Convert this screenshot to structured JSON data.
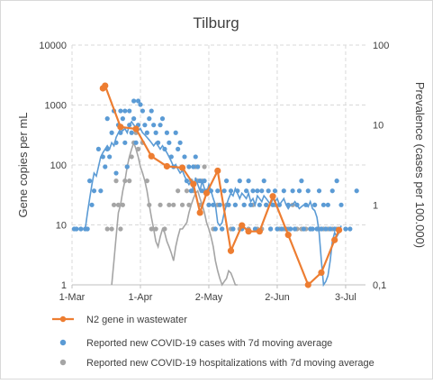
{
  "colors": {
    "wastewater": "#ED7D31",
    "cases": "#5B9BD5",
    "hospitalizations": "#A5A5A5",
    "grid": "#D9D9D9",
    "text": "#404040"
  },
  "chart_data": {
    "type": "line",
    "title": "Tilburg",
    "xlabel": "",
    "ylabel": "Gene copies per mL",
    "y2label": "Prevalence (cases per 100.000)",
    "x_ticks": [
      "1-Mar",
      "1-Apr",
      "2-May",
      "2-Jun",
      "3-Jul"
    ],
    "x_tick_days": [
      0,
      31,
      62,
      93,
      124
    ],
    "x_range_days": [
      0,
      133
    ],
    "y_scale": "log",
    "y_ticks": [
      "1",
      "10",
      "100",
      "1000",
      "10000"
    ],
    "ylim": [
      1,
      10000
    ],
    "y2_scale": "log",
    "y2_ticks": [
      "0,1",
      "1",
      "10",
      "100"
    ],
    "y2lim": [
      0.1,
      100
    ],
    "grid": true,
    "legend_position": "bottom",
    "legend": [
      "N2 gene in wastewater",
      "Reported new COVID-19 cases with 7d moving average",
      "Reported new COVID-19 hospitalizations with 7d moving average"
    ],
    "series": [
      {
        "name": "N2 gene in wastewater",
        "axis": "left",
        "style": "line+markers",
        "x": [
          14,
          15,
          22,
          29,
          36,
          43,
          50,
          55,
          58,
          61,
          66,
          72,
          77,
          80,
          85,
          91,
          98,
          107,
          113,
          119,
          121
        ],
        "y": [
          1900,
          2100,
          430,
          400,
          140,
          95,
          90,
          48,
          16,
          34,
          80,
          3.7,
          9.8,
          7.8,
          7.8,
          30,
          6.8,
          1,
          1.6,
          5.6,
          8.2
        ]
      },
      {
        "name": "Reported new COVID-19 cases with 7d moving average",
        "axis": "right",
        "style": "markers",
        "x": [
          1,
          2,
          4,
          6,
          7,
          8,
          9,
          10,
          12,
          13,
          14,
          15,
          16,
          16,
          17,
          18,
          19,
          20,
          20,
          21,
          22,
          22,
          23,
          24,
          24,
          25,
          26,
          26,
          27,
          28,
          28,
          29,
          30,
          30,
          31,
          32,
          33,
          34,
          35,
          36,
          37,
          38,
          39,
          40,
          41,
          42,
          43,
          44,
          45,
          46,
          47,
          48,
          49,
          50,
          51,
          52,
          53,
          54,
          55,
          56,
          57,
          58,
          59,
          60,
          61,
          62,
          63,
          64,
          65,
          66,
          67,
          68,
          69,
          70,
          71,
          72,
          73,
          74,
          75,
          76,
          77,
          78,
          79,
          80,
          81,
          82,
          83,
          84,
          85,
          86,
          87,
          88,
          89,
          90,
          91,
          92,
          93,
          94,
          95,
          96,
          97,
          98,
          99,
          100,
          101,
          102,
          103,
          104,
          105,
          106,
          107,
          108,
          109,
          110,
          111,
          112,
          113,
          114,
          115,
          116,
          117,
          118,
          119,
          120,
          121,
          122,
          124,
          126,
          129
        ],
        "y": [
          0.5,
          0.5,
          0.5,
          0.5,
          0.5,
          2,
          1,
          1.5,
          5,
          1.5,
          4,
          3,
          5,
          12,
          4,
          8,
          15,
          2.5,
          6,
          10,
          15,
          8,
          12,
          6,
          15,
          3,
          10,
          15,
          8,
          12,
          20,
          6,
          10,
          20,
          18,
          15,
          10,
          8,
          12,
          15,
          10,
          8,
          6,
          10,
          12,
          5,
          8,
          6,
          4,
          3,
          8,
          5,
          6,
          3,
          4,
          2,
          3,
          1.5,
          3,
          4,
          3,
          2,
          1.5,
          2,
          1.5,
          1,
          1.5,
          1,
          0.5,
          1.5,
          1,
          0.5,
          1.5,
          2,
          1,
          1.5,
          0.5,
          1,
          1.5,
          2,
          0.5,
          1,
          1.5,
          2,
          1,
          1.5,
          0.5,
          1.5,
          1,
          1.5,
          2,
          1,
          1.5,
          0.5,
          1,
          1.5,
          0.5,
          1,
          0.5,
          1.5,
          0.5,
          1,
          0.5,
          1.5,
          0.5,
          1,
          1.5,
          2,
          0.5,
          1,
          1.5,
          0.5,
          0.5,
          1,
          0.5,
          1.5,
          0.5,
          1,
          0.5,
          1,
          0.5,
          1.5,
          0.5,
          2,
          0.5,
          1,
          0.5,
          0.5,
          1.5
        ],
        "line": {
          "x": [
            6,
            7,
            8,
            9,
            10,
            11,
            12,
            13,
            14,
            15,
            16,
            17,
            18,
            19,
            20,
            21,
            22,
            23,
            24,
            25,
            26,
            27,
            28,
            29,
            30,
            31,
            32,
            33,
            34,
            35,
            36,
            37,
            38,
            39,
            40,
            41,
            42,
            43,
            44,
            45,
            46,
            47,
            48,
            49,
            50,
            51,
            52,
            53,
            54,
            55,
            56,
            57,
            58,
            59,
            60,
            61,
            62,
            63,
            64,
            65,
            66,
            67,
            68,
            69,
            70,
            71,
            72,
            73,
            74,
            75,
            76,
            77,
            78,
            79,
            80,
            81,
            82,
            83,
            84,
            85,
            86,
            87,
            88,
            89,
            90,
            91,
            92,
            93,
            94,
            95,
            96,
            97,
            98,
            99,
            100,
            101,
            102,
            103,
            104,
            105,
            106,
            107,
            108,
            109,
            110,
            111,
            112,
            113,
            114,
            115,
            116,
            117,
            118,
            119,
            120,
            121,
            122
          ],
          "y": [
            0.5,
            0.8,
            1.2,
            1.8,
            2.5,
            2.3,
            3,
            4,
            4.5,
            5,
            5.5,
            5,
            6,
            5.5,
            7,
            8,
            9,
            8.5,
            9,
            8,
            10,
            11,
            10,
            9.5,
            8.5,
            9,
            8,
            7.5,
            7,
            6.5,
            6,
            5.5,
            6,
            5.5,
            5,
            5.5,
            5,
            4.5,
            4,
            3.5,
            3,
            3.2,
            2.8,
            2.5,
            2.7,
            2.3,
            2,
            1.8,
            2,
            1.5,
            2.2,
            1.8,
            1.5,
            2,
            1.6,
            1.4,
            1.8,
            1.5,
            1.2,
            1,
            0.6,
            0.55,
            0.6,
            0.8,
            1,
            1.2,
            1.4,
            1.3,
            1.6,
            1.4,
            1.2,
            1.4,
            1.3,
            1.2,
            1.4,
            1.1,
            1.2,
            1,
            1.3,
            1.2,
            1.1,
            1.3,
            1.2,
            1.1,
            1,
            1.2,
            1.1,
            1.2,
            1,
            1.1,
            1.2,
            1,
            0.9,
            1,
            1,
            1.1,
            1,
            0.9,
            0.95,
            1,
            1,
            0.95,
            1.1,
            0.9,
            0.85,
            0.7,
            0.45,
            0.2,
            0.1,
            0.11,
            0.13,
            0.2,
            0.35,
            0.45,
            0.4,
            0.45,
            0.55
          ]
        }
      },
      {
        "name": "Reported new COVID-19 hospitalizations with 7d moving average",
        "axis": "right",
        "style": "markers",
        "x": [
          16,
          18,
          19,
          20,
          21,
          22,
          23,
          24,
          25,
          26,
          27,
          28,
          29,
          30,
          32,
          34,
          35,
          36,
          38,
          40,
          42,
          44,
          46,
          48,
          50,
          52,
          53,
          54,
          55,
          56,
          57,
          58,
          59,
          60,
          62,
          64,
          66,
          68,
          70,
          72,
          74,
          76,
          78,
          80,
          82,
          84,
          86,
          88,
          90,
          92,
          94,
          96,
          98,
          100,
          102,
          104,
          106,
          108,
          110,
          112,
          114,
          116,
          118,
          120
        ],
        "y": [
          0.5,
          0.5,
          1,
          2,
          1,
          0.5,
          1,
          2,
          3,
          2,
          4,
          6,
          8,
          5,
          6,
          2,
          1,
          0.5,
          0.5,
          1,
          0.5,
          1,
          1,
          1.5,
          1,
          1.5,
          1,
          2,
          1.5,
          3,
          2,
          1,
          2,
          3,
          1,
          0.5,
          1,
          0.5,
          1,
          0.5,
          1,
          0.5,
          1,
          0.5,
          1,
          0.5,
          0.5,
          1,
          0.5,
          1,
          0.5,
          0.5,
          0.5,
          1,
          0.5,
          0.5,
          0.5,
          0.5,
          1,
          0.5,
          0.5,
          0.5,
          0.5,
          0.5
        ],
        "line": {
          "x": [
            18,
            19,
            20,
            21,
            22,
            23,
            24,
            25,
            26,
            27,
            28,
            29,
            30,
            31,
            32,
            33,
            34,
            35,
            36,
            37,
            38,
            39,
            40,
            41,
            42,
            43,
            44,
            45,
            46,
            47,
            48,
            49,
            50,
            51,
            52,
            53,
            54,
            55,
            56,
            57,
            58,
            59,
            60,
            61,
            62,
            63,
            64,
            65,
            66,
            67,
            68,
            69,
            70,
            71,
            72,
            73,
            74,
            75
          ],
          "y": [
            0.1,
            0.2,
            0.4,
            0.8,
            1,
            1.5,
            2,
            3,
            4,
            5,
            6,
            5,
            4,
            3,
            2.5,
            2,
            1.5,
            1,
            0.7,
            0.5,
            0.35,
            0.3,
            0.4,
            0.5,
            0.45,
            0.35,
            0.3,
            0.25,
            0.2,
            0.3,
            0.4,
            0.5,
            0.5,
            0.55,
            0.6,
            0.8,
            1,
            1.2,
            1.4,
            1.5,
            1.2,
            1,
            0.8,
            0.6,
            0.5,
            0.4,
            0.3,
            0.2,
            0.15,
            0.12,
            0.1,
            0.11,
            0.12,
            0.15,
            0.14,
            0.12,
            0.1,
            0.1
          ]
        }
      }
    ]
  }
}
